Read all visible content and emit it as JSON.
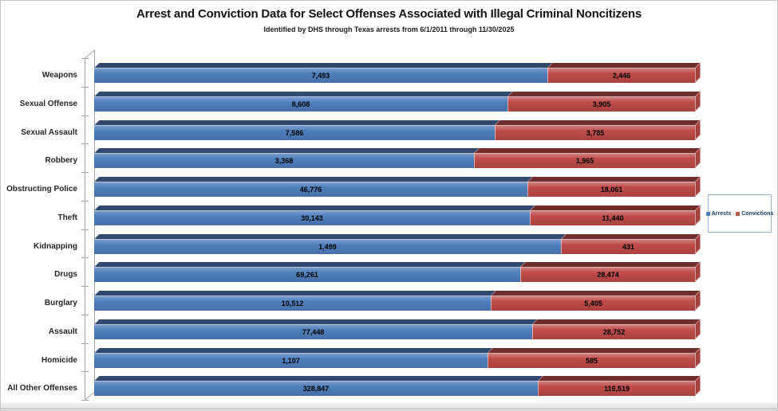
{
  "legend": {
    "items": [
      {
        "label": "Arrests",
        "color": "#4F81BD"
      },
      {
        "label": "Convictions",
        "color": "#C0504D"
      }
    ]
  },
  "chart_data": {
    "type": "bar",
    "orientation": "horizontal",
    "stacked": "100%",
    "style": "3d",
    "title": "Arrest and Conviction Data for Select Offenses Associated with Illegal Criminal Noncitizens",
    "subtitle": "Identified by DHS through Texas arrests from 6/1/2011 through 11/30/2025",
    "categories": [
      "Weapons",
      "Sexual Offense",
      "Sexual Assault",
      "Robbery",
      "Obstructing Police",
      "Theft",
      "Kidnapping",
      "Drugs",
      "Burglary",
      "Assault",
      "Homicide",
      "All Other Offenses"
    ],
    "series": [
      {
        "name": "Arrests",
        "color": "#4F81BD",
        "values": [
          7493,
          8608,
          7586,
          3368,
          46776,
          30143,
          1499,
          69261,
          10512,
          77448,
          1107,
          328847
        ]
      },
      {
        "name": "Convictions",
        "color": "#C0504D",
        "values": [
          2446,
          3905,
          3785,
          1965,
          18061,
          11440,
          431,
          28474,
          5405,
          28752,
          585,
          116519
        ]
      }
    ],
    "data_labels": true,
    "legend_position": "right",
    "grid": false,
    "value_axis_visible": false
  }
}
